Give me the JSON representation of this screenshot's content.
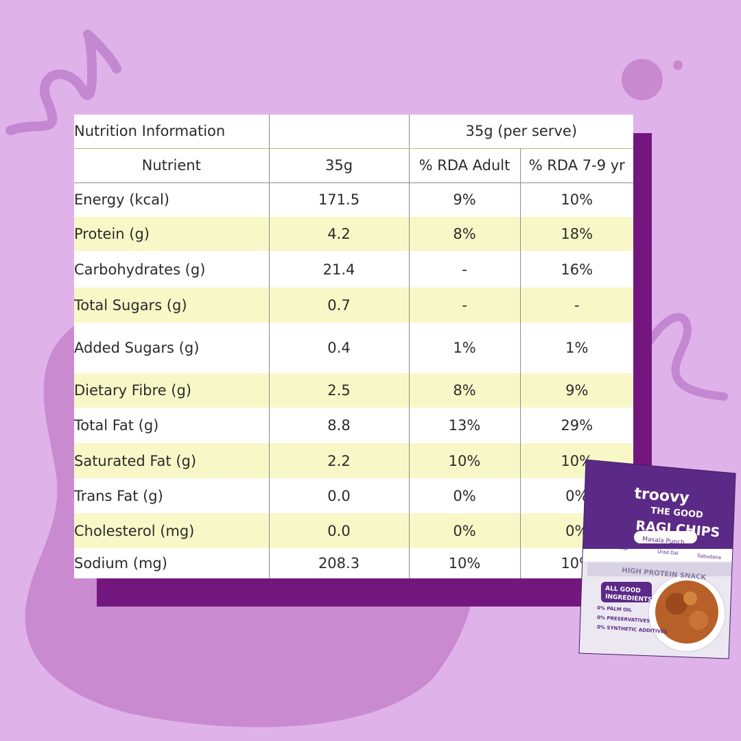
{
  "colors": {
    "background": "#dfb2ea",
    "blob": "#c98ad0",
    "block": "#73177f",
    "row_alt": "#f8f7c7",
    "table_bg": "#ffffff"
  },
  "table": {
    "title": "Nutrition Information",
    "serving_header": "35g (per serve)",
    "columns": [
      "Nutrient",
      "35g",
      "% RDA Adult",
      "% RDA 7-9 yr"
    ],
    "rows": [
      {
        "nutrient": "Energy (kcal)",
        "amount": "171.5",
        "rda_adult": "9%",
        "rda_child": "10%"
      },
      {
        "nutrient": "Protein (g)",
        "amount": "4.2",
        "rda_adult": "8%",
        "rda_child": "18%"
      },
      {
        "nutrient": "Carbohydrates (g)",
        "amount": "21.4",
        "rda_adult": "-",
        "rda_child": "16%"
      },
      {
        "nutrient": "Total Sugars (g)",
        "amount": "0.7",
        "rda_adult": "-",
        "rda_child": "-"
      },
      {
        "nutrient": "Added Sugars (g)",
        "amount": "0.4",
        "rda_adult": "1%",
        "rda_child": "1%"
      },
      {
        "nutrient": "Dietary Fibre (g)",
        "amount": "2.5",
        "rda_adult": "8%",
        "rda_child": "9%"
      },
      {
        "nutrient": "Total Fat (g)",
        "amount": "8.8",
        "rda_adult": "13%",
        "rda_child": "29%"
      },
      {
        "nutrient": "Saturated Fat (g)",
        "amount": "2.2",
        "rda_adult": "10%",
        "rda_child": "10%"
      },
      {
        "nutrient": "Trans Fat (g)",
        "amount": "0.0",
        "rda_adult": "0%",
        "rda_child": "0%"
      },
      {
        "nutrient": "Cholesterol (mg)",
        "amount": "0.0",
        "rda_adult": "0%",
        "rda_child": "0%"
      },
      {
        "nutrient": "Sodium (mg)",
        "amount": "208.3",
        "rda_adult": "10%",
        "rda_child": "10%"
      }
    ]
  },
  "package": {
    "brand": "troovy",
    "line1": "THE GOOD",
    "line2": "RAGI CHIPS",
    "flavor": "Masala Punch",
    "ingredients": [
      "Ragi",
      "Urad Dal",
      "Sabudana"
    ],
    "tagline": "HIGH PROTEIN SNACK",
    "badge": [
      "ALL GOOD",
      "INGREDIENTS"
    ],
    "claims": [
      "0% PALM OIL",
      "0% PRESERVATIVES",
      "0% SYNTHETIC ADDITIVES"
    ]
  }
}
